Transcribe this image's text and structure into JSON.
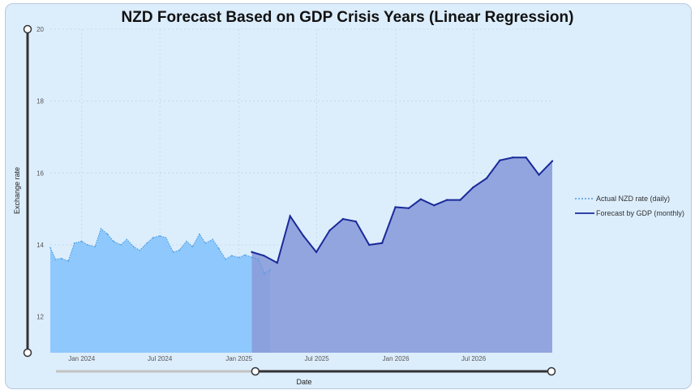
{
  "chart_data": {
    "type": "area",
    "title": "NZD Forecast Based on GDP Crisis Years (Linear Regression)",
    "xlabel": "Date",
    "ylabel": "Exchange rate",
    "ylim": [
      11,
      20
    ],
    "xlim": [
      "2023-10-20",
      "2026-12-31"
    ],
    "y_ticks": [
      12,
      14,
      16,
      18,
      20
    ],
    "x_ticks": [
      {
        "label": "Jan 2024",
        "date": "2024-01-01"
      },
      {
        "label": "Jul 2024",
        "date": "2024-07-01"
      },
      {
        "label": "Jan 2025",
        "date": "2025-01-01"
      },
      {
        "label": "Jul 2025",
        "date": "2025-07-01"
      },
      {
        "label": "Jan 2026",
        "date": "2026-01-01"
      },
      {
        "label": "Jul 2026",
        "date": "2026-07-01"
      }
    ],
    "grid": true,
    "legend_position": "right",
    "series": [
      {
        "name": "Actual NZD rate (daily)",
        "style": "dotted",
        "color": "#4e9fe0",
        "fill": "#8ec8fc",
        "points": [
          [
            "2023-10-20",
            13.92
          ],
          [
            "2023-11-01",
            13.6
          ],
          [
            "2023-11-15",
            13.62
          ],
          [
            "2023-12-01",
            13.55
          ],
          [
            "2023-12-15",
            14.05
          ],
          [
            "2024-01-01",
            14.1
          ],
          [
            "2024-01-15",
            14.0
          ],
          [
            "2024-02-01",
            13.95
          ],
          [
            "2024-02-15",
            14.45
          ],
          [
            "2024-03-01",
            14.3
          ],
          [
            "2024-03-15",
            14.1
          ],
          [
            "2024-04-01",
            14.0
          ],
          [
            "2024-04-15",
            14.15
          ],
          [
            "2024-05-01",
            13.95
          ],
          [
            "2024-05-15",
            13.85
          ],
          [
            "2024-06-01",
            14.05
          ],
          [
            "2024-06-15",
            14.2
          ],
          [
            "2024-07-01",
            14.25
          ],
          [
            "2024-07-15",
            14.2
          ],
          [
            "2024-08-01",
            13.8
          ],
          [
            "2024-08-15",
            13.85
          ],
          [
            "2024-09-01",
            14.1
          ],
          [
            "2024-09-15",
            13.95
          ],
          [
            "2024-10-01",
            14.3
          ],
          [
            "2024-10-15",
            14.05
          ],
          [
            "2024-11-01",
            14.15
          ],
          [
            "2024-11-15",
            13.9
          ],
          [
            "2024-12-01",
            13.6
          ],
          [
            "2024-12-15",
            13.7
          ],
          [
            "2025-01-01",
            13.65
          ],
          [
            "2025-01-15",
            13.72
          ],
          [
            "2025-02-01",
            13.65
          ],
          [
            "2025-02-15",
            13.6
          ],
          [
            "2025-03-01",
            13.2
          ],
          [
            "2025-03-15",
            13.3
          ]
        ]
      },
      {
        "name": "Forecast by GDP (monthly)",
        "style": "solid",
        "color": "#1a2a9a",
        "fill": "#8b9cda",
        "points": [
          [
            "2025-01-31",
            13.8
          ],
          [
            "2025-02-28",
            13.7
          ],
          [
            "2025-03-31",
            13.5
          ],
          [
            "2025-04-30",
            14.8
          ],
          [
            "2025-05-31",
            14.25
          ],
          [
            "2025-06-30",
            13.8
          ],
          [
            "2025-07-31",
            14.4
          ],
          [
            "2025-08-31",
            14.72
          ],
          [
            "2025-09-30",
            14.65
          ],
          [
            "2025-10-31",
            14.0
          ],
          [
            "2025-11-30",
            14.05
          ],
          [
            "2025-12-31",
            15.05
          ],
          [
            "2026-01-31",
            15.02
          ],
          [
            "2026-02-28",
            15.27
          ],
          [
            "2026-03-31",
            15.1
          ],
          [
            "2026-04-30",
            15.25
          ],
          [
            "2026-05-31",
            15.25
          ],
          [
            "2026-06-30",
            15.6
          ],
          [
            "2026-07-31",
            15.85
          ],
          [
            "2026-08-31",
            16.35
          ],
          [
            "2026-09-30",
            16.43
          ],
          [
            "2026-10-31",
            16.43
          ],
          [
            "2026-11-30",
            15.95
          ],
          [
            "2026-12-31",
            16.33
          ]
        ]
      }
    ]
  },
  "range_slider": {
    "y_range": [
      11,
      20
    ],
    "x_selection": [
      "2025-02-01",
      "2026-12-31"
    ]
  }
}
